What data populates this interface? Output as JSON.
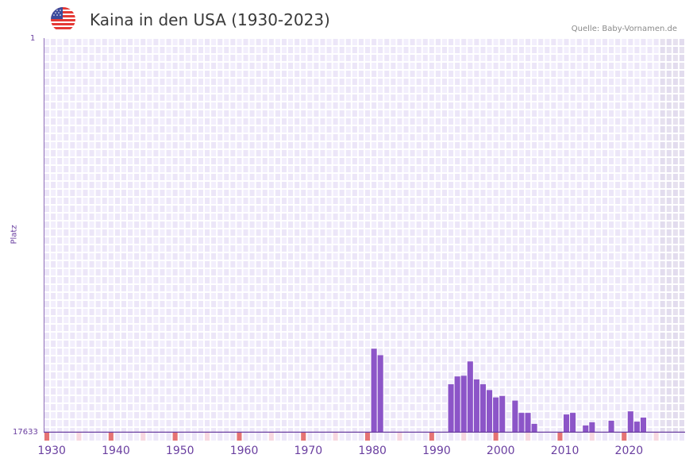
{
  "header": {
    "title": "Kaina in den USA (1930-2023)",
    "source": "Quelle: Baby-Vornamen.de",
    "flag_icon": "usa-flag-icon"
  },
  "axis": {
    "y_title": "Platz",
    "y_top": "1",
    "y_bottom": "17633",
    "x_ticks": [
      "1930",
      "1940",
      "1950",
      "1960",
      "1970",
      "1980",
      "1990",
      "2000",
      "2010",
      "2020"
    ]
  },
  "colors": {
    "bar": "#8c55c8",
    "axis": "#6a3fa0",
    "grid_light": "#f2eefc",
    "grid_dark": "#ece6f8",
    "future_shade": "#e2dcee",
    "decade_marker": "#e57373",
    "half_decade_marker": "#f7d7e0"
  },
  "chart_data": {
    "type": "bar",
    "title": "Kaina in den USA (1930-2023)",
    "xlabel": "",
    "ylabel": "Platz",
    "y_inverted": true,
    "ylim": [
      17633,
      1
    ],
    "xlim": [
      1928,
      2027
    ],
    "grid": true,
    "x": [
      1979,
      1980,
      1991,
      1992,
      1993,
      1994,
      1995,
      1996,
      1997,
      1998,
      1999,
      2001,
      2002,
      2003,
      2004,
      2005,
      2006,
      2009,
      2010,
      2012,
      2013,
      2016,
      2019,
      2020,
      2021
    ],
    "values": [
      13880,
      14170,
      15470,
      15120,
      15090,
      14450,
      15250,
      15470,
      15730,
      16060,
      15990,
      16200,
      16750,
      16750,
      17240,
      17630,
      17600,
      16820,
      16750,
      17310,
      17170,
      17100,
      16680,
      17140,
      16960
    ],
    "x_ticks": [
      "1930",
      "1940",
      "1950",
      "1960",
      "1970",
      "1980",
      "1990",
      "2000",
      "2010",
      "2020"
    ],
    "y_ticks": [
      "1",
      "17633"
    ],
    "source": "Quelle: Baby-Vornamen.de"
  }
}
